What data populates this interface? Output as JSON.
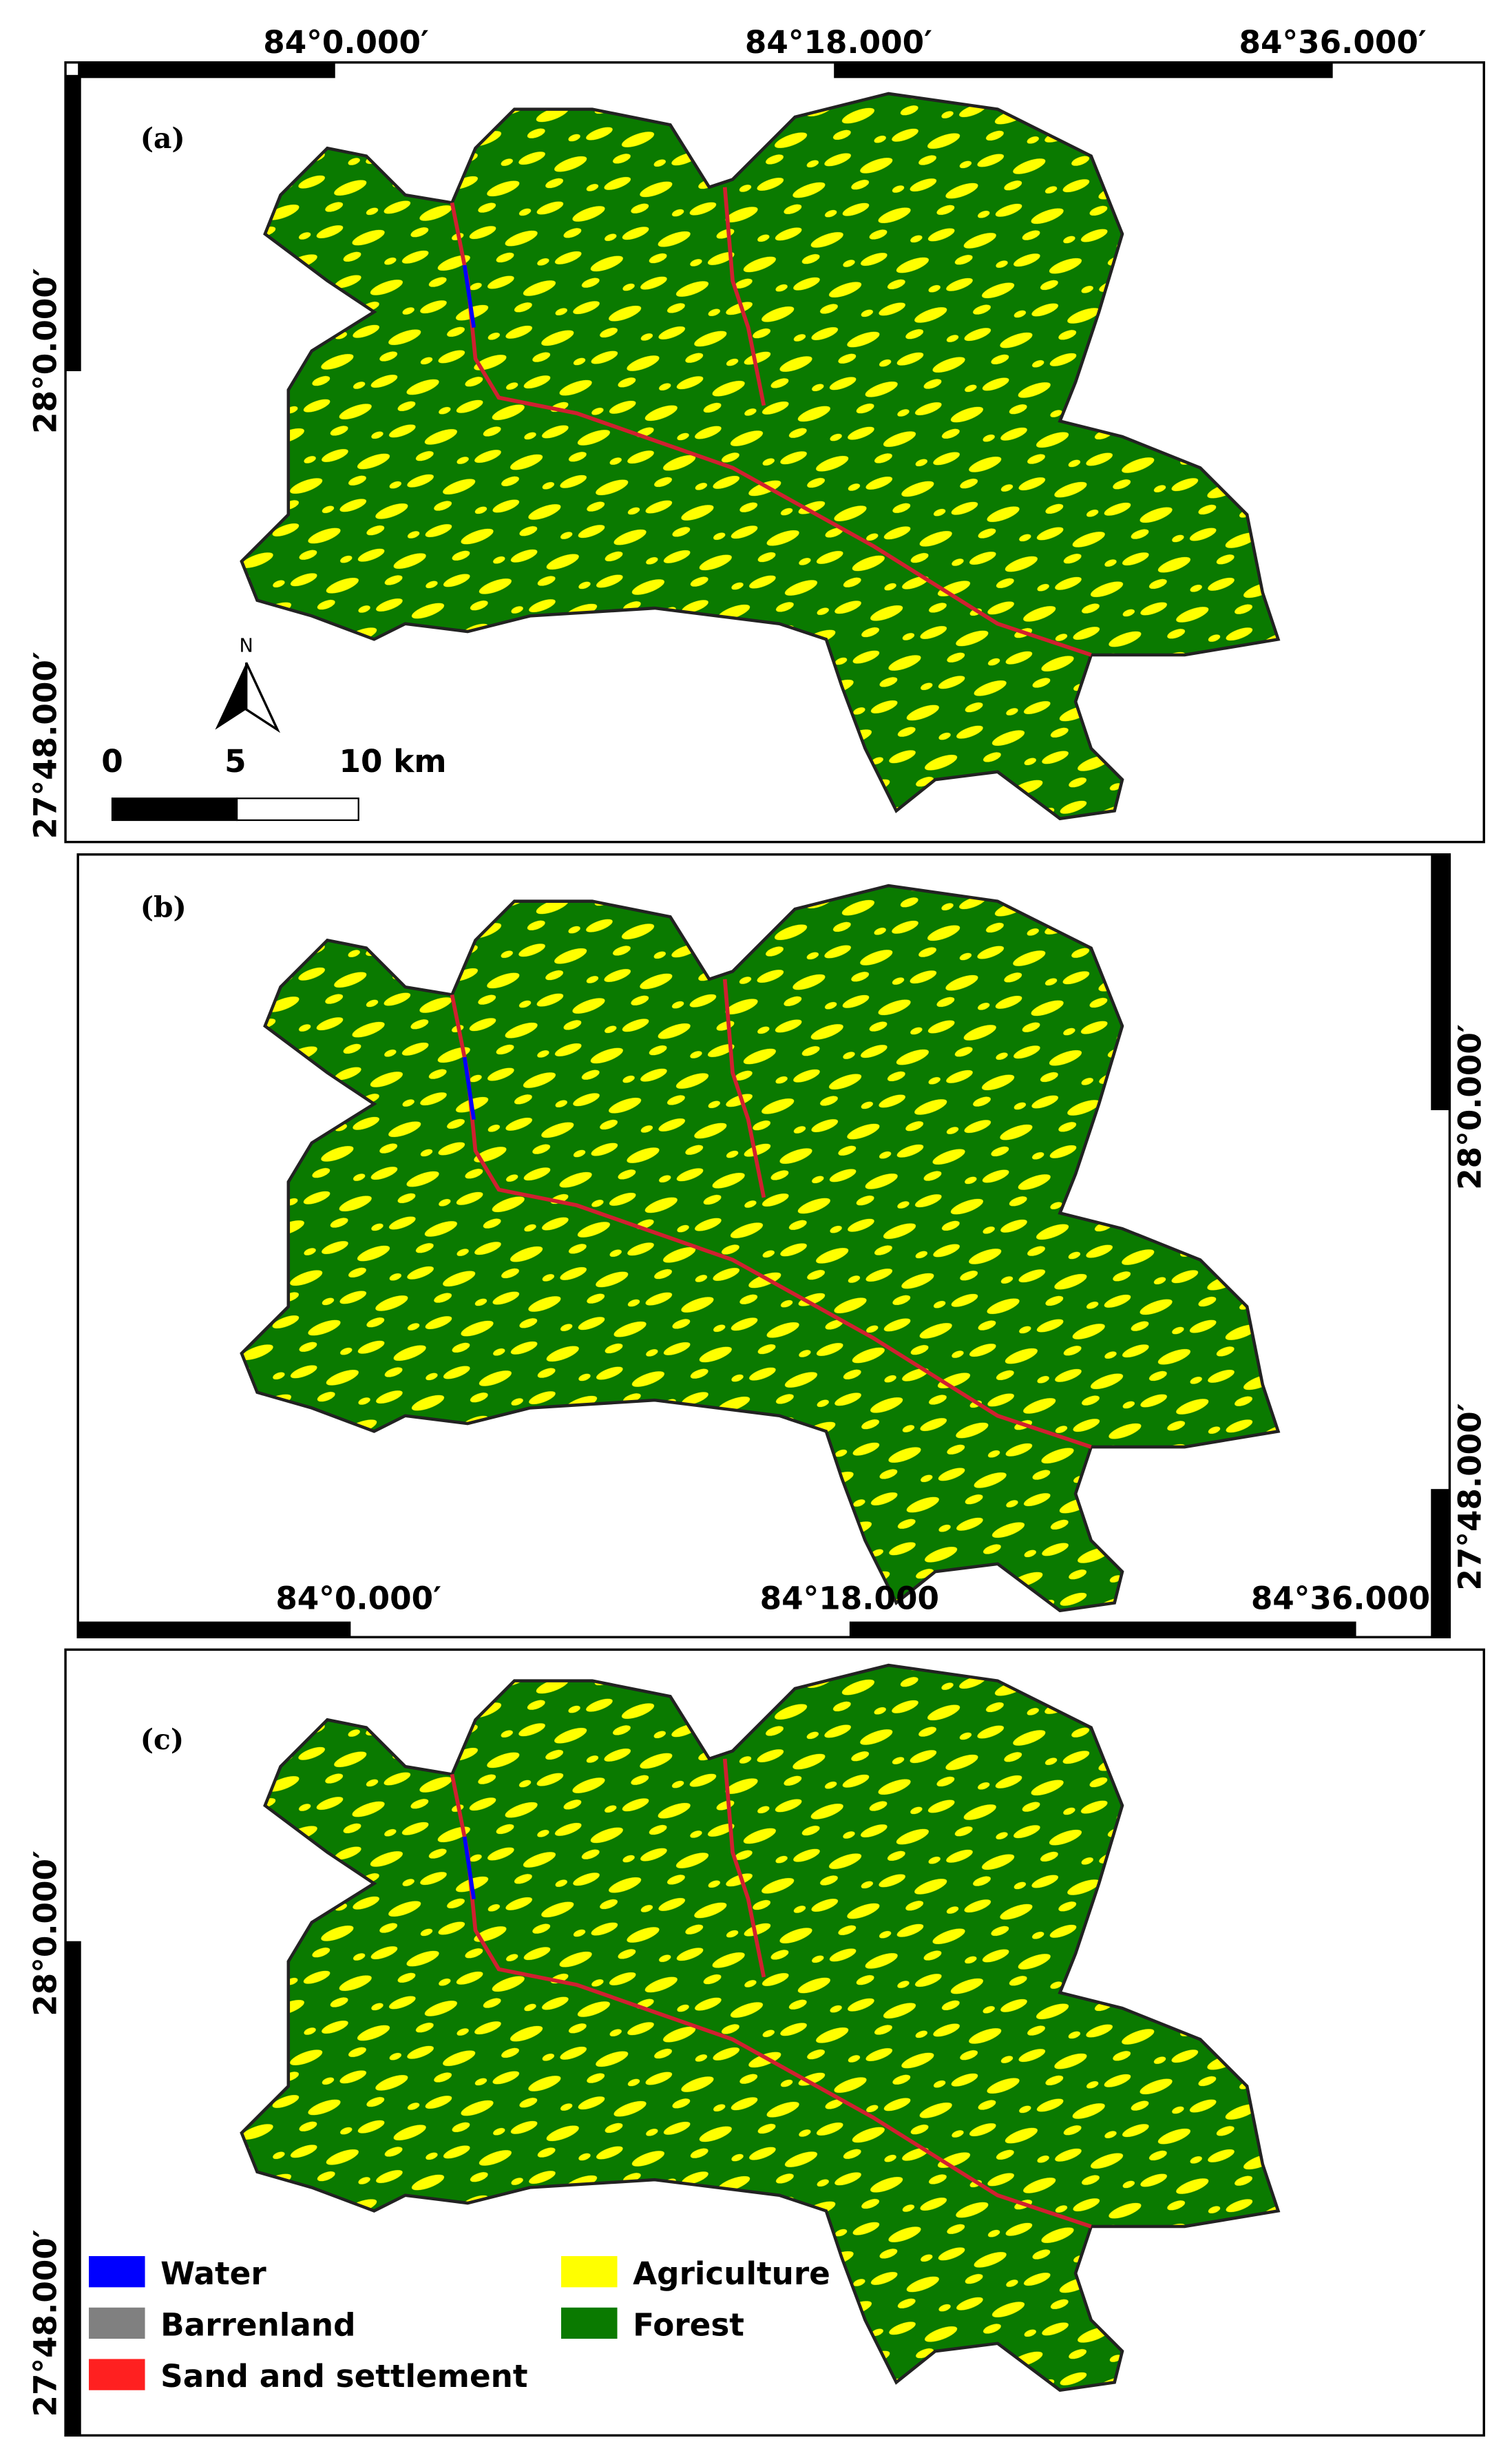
{
  "panels": [
    {
      "label": "(a)",
      "x_labels": [
        "84°0.000′",
        "84°18.000′",
        "84°36.000′"
      ],
      "y_labels": [
        "28°0.000′",
        "27°48.000′"
      ],
      "north": "N",
      "scale_bar": [
        "0",
        "5",
        "10 km"
      ]
    },
    {
      "label": "(b)",
      "x_labels": [
        "84°0.000′",
        "84°18.000",
        "84°36.000"
      ],
      "y_labels": [
        "28°0.000′",
        "27°48.000′"
      ]
    },
    {
      "label": "(c)",
      "y_labels": [
        "28°0.000′",
        "27°48.000′"
      ]
    }
  ],
  "legend": [
    {
      "label": "Water",
      "color": "#0000ff"
    },
    {
      "label": "Barrenland",
      "color": "#808080"
    },
    {
      "label": "Sand and settlement",
      "color": "#ff2020"
    },
    {
      "label": "Agriculture",
      "color": "#ffff00"
    },
    {
      "label": "Forest",
      "color": "#0a7a00"
    }
  ]
}
